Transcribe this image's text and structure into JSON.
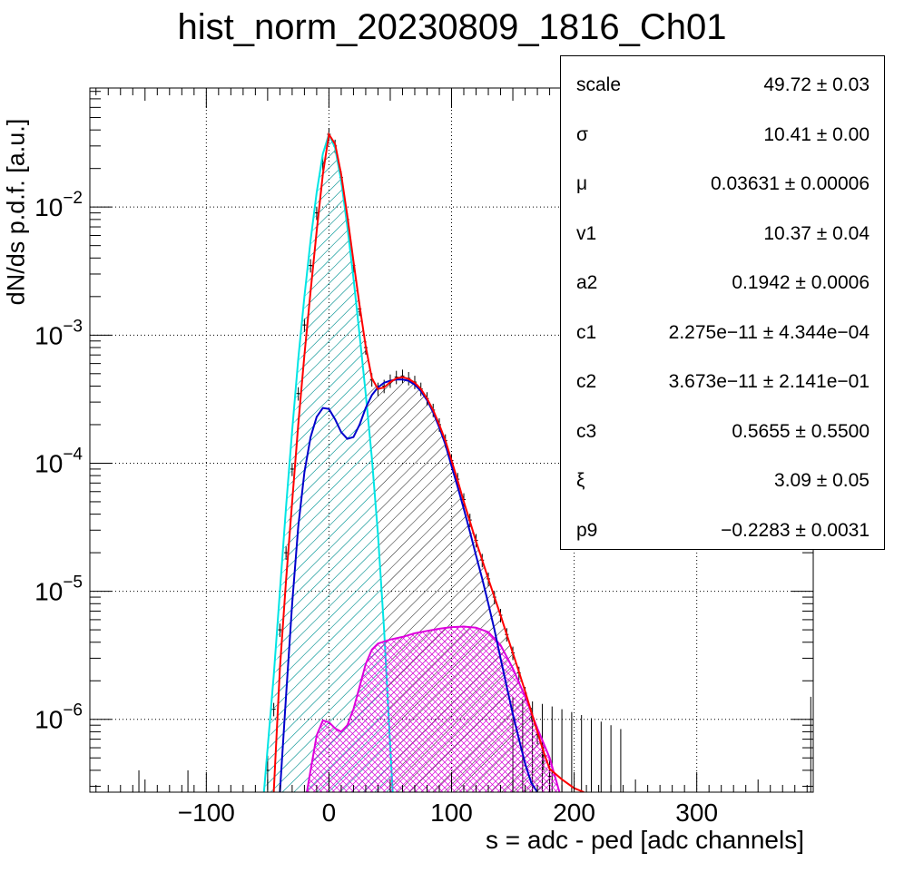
{
  "chart_data": {
    "type": "histogram-fit",
    "title": "hist_norm_20230809_1816_Ch01",
    "xlabel": "s = adc - ped [adc channels]",
    "ylabel": "dN/ds p.d.f. [a.u.]",
    "xlim": [
      -195,
      395
    ],
    "ylim": [
      2.7e-07,
      0.085
    ],
    "y_scale": "log",
    "grid": true,
    "x_ticks": [
      {
        "value": -100,
        "label": "−100"
      },
      {
        "value": 0,
        "label": "0"
      },
      {
        "value": 100,
        "label": "100"
      },
      {
        "value": 200,
        "label": "200"
      },
      {
        "value": 300,
        "label": "300"
      }
    ],
    "y_ticks": [
      {
        "value": 1e-06,
        "exp": "−6"
      },
      {
        "value": 1e-05,
        "exp": "−5"
      },
      {
        "value": 0.0001,
        "exp": "−4"
      },
      {
        "value": 0.001,
        "exp": "−3"
      },
      {
        "value": 0.01,
        "exp": "−2"
      }
    ],
    "series": [
      {
        "color": "#000000",
        "style": "histogram with error bars",
        "points": [
          [
            -50,
            4e-07
          ],
          [
            -45,
            1.2e-06
          ],
          [
            -40,
            5e-06
          ],
          [
            -35,
            2e-05
          ],
          [
            -30,
            9e-05
          ],
          [
            -25,
            0.00035
          ],
          [
            -20,
            0.0012
          ],
          [
            -15,
            0.0035
          ],
          [
            -10,
            0.009
          ],
          [
            -5,
            0.022
          ],
          [
            0,
            0.037
          ],
          [
            5,
            0.03
          ],
          [
            10,
            0.017
          ],
          [
            15,
            0.008
          ],
          [
            20,
            0.0035
          ],
          [
            25,
            0.0016
          ],
          [
            30,
            0.0008
          ],
          [
            35,
            0.00045
          ],
          [
            40,
            0.00038
          ],
          [
            45,
            0.0004
          ],
          [
            50,
            0.00044
          ],
          [
            55,
            0.00047
          ],
          [
            60,
            0.00048
          ],
          [
            65,
            0.00046
          ],
          [
            70,
            0.00043
          ],
          [
            75,
            0.00038
          ],
          [
            80,
            0.00032
          ],
          [
            85,
            0.00026
          ],
          [
            90,
            0.0002
          ],
          [
            95,
            0.00015
          ],
          [
            100,
            0.000105
          ],
          [
            105,
            7.5e-05
          ],
          [
            110,
            5.2e-05
          ],
          [
            115,
            3.6e-05
          ],
          [
            120,
            2.5e-05
          ],
          [
            125,
            1.75e-05
          ],
          [
            130,
            1.25e-05
          ],
          [
            135,
            9e-06
          ],
          [
            140,
            6.5e-06
          ],
          [
            145,
            4.6e-06
          ],
          [
            150,
            3.3e-06
          ],
          [
            155,
            2.3e-06
          ],
          [
            160,
            1.6e-06
          ],
          [
            165,
            1.1e-06
          ],
          [
            170,
            7.6e-07
          ],
          [
            175,
            5.2e-07
          ],
          [
            180,
            3.6e-07
          ]
        ]
      },
      {
        "color": "#ff0000",
        "style": "total fit",
        "points": [
          [
            -45,
            2.7e-07
          ],
          [
            -40,
            2.5e-06
          ],
          [
            -35,
            1.2e-05
          ],
          [
            -30,
            5e-05
          ],
          [
            -25,
            0.0002
          ],
          [
            -20,
            0.0007
          ],
          [
            -15,
            0.0022
          ],
          [
            -10,
            0.0065
          ],
          [
            -5,
            0.018
          ],
          [
            0,
            0.037
          ],
          [
            5,
            0.031
          ],
          [
            10,
            0.018
          ],
          [
            15,
            0.0085
          ],
          [
            20,
            0.0038
          ],
          [
            25,
            0.0017
          ],
          [
            30,
            0.00082
          ],
          [
            35,
            0.00046
          ],
          [
            40,
            0.00038
          ],
          [
            45,
            0.00039
          ],
          [
            50,
            0.00043
          ],
          [
            55,
            0.00046
          ],
          [
            60,
            0.00047
          ],
          [
            65,
            0.000455
          ],
          [
            70,
            0.000425
          ],
          [
            75,
            0.00038
          ],
          [
            80,
            0.00032
          ],
          [
            85,
            0.00026
          ],
          [
            90,
            0.0002
          ],
          [
            95,
            0.00015
          ],
          [
            100,
            0.000105
          ],
          [
            105,
            7.3e-05
          ],
          [
            110,
            5e-05
          ],
          [
            115,
            3.5e-05
          ],
          [
            120,
            2.45e-05
          ],
          [
            125,
            1.75e-05
          ],
          [
            130,
            1.25e-05
          ],
          [
            135,
            9e-06
          ],
          [
            140,
            6.5e-06
          ],
          [
            145,
            4.6e-06
          ],
          [
            150,
            3.3e-06
          ],
          [
            155,
            2.35e-06
          ],
          [
            160,
            1.65e-06
          ],
          [
            165,
            1.15e-06
          ],
          [
            170,
            8e-07
          ],
          [
            175,
            5.6e-07
          ],
          [
            180,
            4.1e-07
          ],
          [
            190,
            3.4e-07
          ],
          [
            200,
            2.9e-07
          ],
          [
            208,
            2.7e-07
          ]
        ]
      },
      {
        "color": "#00e5e5",
        "style": "pedestal component",
        "fill": "hatched",
        "points": [
          [
            -53,
            2.7e-07
          ],
          [
            -50,
            6e-07
          ],
          [
            -45,
            2.2e-06
          ],
          [
            -40,
            1e-05
          ],
          [
            -35,
            4.5e-05
          ],
          [
            -30,
            0.00018
          ],
          [
            -25,
            0.00065
          ],
          [
            -20,
            0.002
          ],
          [
            -15,
            0.0055
          ],
          [
            -10,
            0.013
          ],
          [
            -5,
            0.026
          ],
          [
            0,
            0.037
          ],
          [
            5,
            0.029
          ],
          [
            10,
            0.016
          ],
          [
            15,
            0.007
          ],
          [
            20,
            0.0028
          ],
          [
            25,
            0.001
          ],
          [
            30,
            0.00035
          ],
          [
            35,
            0.00011
          ],
          [
            40,
            2.8e-05
          ],
          [
            45,
            5e-06
          ],
          [
            50,
            6e-07
          ],
          [
            52,
            2.7e-07
          ]
        ]
      },
      {
        "color": "#0000cc",
        "style": "1 p.e. component",
        "fill": "hatched",
        "points": [
          [
            -40,
            2.7e-07
          ],
          [
            -35,
            1.5e-06
          ],
          [
            -30,
            8e-06
          ],
          [
            -25,
            3.2e-05
          ],
          [
            -20,
            8.5e-05
          ],
          [
            -15,
            0.00016
          ],
          [
            -10,
            0.00023
          ],
          [
            -5,
            0.00027
          ],
          [
            0,
            0.000265
          ],
          [
            5,
            0.00022
          ],
          [
            10,
            0.000175
          ],
          [
            15,
            0.000155
          ],
          [
            20,
            0.00016
          ],
          [
            25,
            0.0002
          ],
          [
            30,
            0.00027
          ],
          [
            35,
            0.00034
          ],
          [
            40,
            0.00039
          ],
          [
            45,
            0.000425
          ],
          [
            50,
            0.00044
          ],
          [
            55,
            0.00045
          ],
          [
            60,
            0.00045
          ],
          [
            65,
            0.00044
          ],
          [
            70,
            0.00041
          ],
          [
            75,
            0.000365
          ],
          [
            80,
            0.00031
          ],
          [
            85,
            0.00025
          ],
          [
            90,
            0.00019
          ],
          [
            95,
            0.00014
          ],
          [
            100,
            9.5e-05
          ],
          [
            105,
            6.5e-05
          ],
          [
            110,
            4.4e-05
          ],
          [
            115,
            2.9e-05
          ],
          [
            120,
            1.9e-05
          ],
          [
            125,
            1.25e-05
          ],
          [
            130,
            8e-06
          ],
          [
            135,
            5e-06
          ],
          [
            140,
            3e-06
          ],
          [
            145,
            1.8e-06
          ],
          [
            150,
            1.1e-06
          ],
          [
            155,
            7e-07
          ],
          [
            160,
            4.5e-07
          ],
          [
            165,
            3.2e-07
          ],
          [
            170,
            2.7e-07
          ]
        ]
      },
      {
        "color": "#dd00dd",
        "style": "2 p.e. component",
        "fill": "hatched",
        "points": [
          [
            -18,
            2.7e-07
          ],
          [
            -15,
            4e-07
          ],
          [
            -10,
            7.5e-07
          ],
          [
            -5,
            9.8e-07
          ],
          [
            0,
            9.5e-07
          ],
          [
            5,
            8.5e-07
          ],
          [
            10,
            8e-07
          ],
          [
            15,
            9e-07
          ],
          [
            20,
            1.2e-06
          ],
          [
            25,
            1.8e-06
          ],
          [
            30,
            2.7e-06
          ],
          [
            35,
            3.5e-06
          ],
          [
            40,
            3.9e-06
          ],
          [
            50,
            4.2e-06
          ],
          [
            60,
            4.4e-06
          ],
          [
            70,
            4.7e-06
          ],
          [
            80,
            4.9e-06
          ],
          [
            90,
            5.1e-06
          ],
          [
            100,
            5.25e-06
          ],
          [
            110,
            5.3e-06
          ],
          [
            120,
            5.2e-06
          ],
          [
            130,
            4.8e-06
          ],
          [
            140,
            3.8e-06
          ],
          [
            150,
            2.5e-06
          ],
          [
            160,
            1.5e-06
          ],
          [
            170,
            8.5e-07
          ],
          [
            180,
            5e-07
          ],
          [
            188,
            2.7e-07
          ]
        ]
      }
    ]
  },
  "stats": [
    {
      "name": "scale",
      "value": "49.72 ± 0.03"
    },
    {
      "name": "σ",
      "value": "10.41 ± 0.00"
    },
    {
      "name": "μ",
      "value": "0.03631 ± 0.00006"
    },
    {
      "name": "v1",
      "value": "10.37 ± 0.04"
    },
    {
      "name": "a2",
      "value": "0.1942 ± 0.0006"
    },
    {
      "name": "c1",
      "value": "2.275e−11 ± 4.344e−04"
    },
    {
      "name": "c2",
      "value": "3.673e−11 ± 2.141e−01"
    },
    {
      "name": "c3",
      "value": "0.5655 ± 0.5500"
    },
    {
      "name": "ξ",
      "value": "3.09 ± 0.05"
    },
    {
      "name": "p9",
      "value": "−0.2283 ± 0.0031"
    }
  ]
}
